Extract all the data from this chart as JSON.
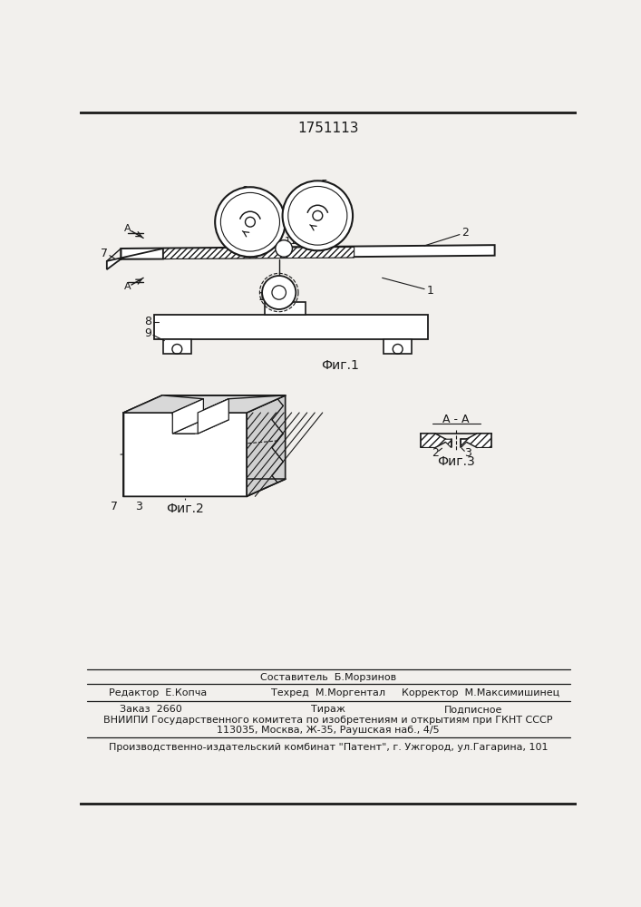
{
  "title": "1751113",
  "bg_color": "#f2f0ed",
  "line_color": "#1a1a1a",
  "fig1_label": "Фиг.1",
  "fig2_label": "Фиг.2",
  "fig3_label": "Фиг.3",
  "fig3_title": "A - A",
  "footer_editor": "Редактор  Е.Копча",
  "footer_tech": "Техред  М.Моргентал",
  "footer_corr": "Корректор  М.Максимишинец",
  "footer_author": "Составитель  Б.Морзинов",
  "footer_order": "Заказ  2660",
  "footer_tirazh": "Тираж",
  "footer_podp": "Подписное",
  "footer_vniipи": "ВНИИПИ Государственного комитета по изобретениям и открытиям при ГКНТ СССР",
  "footer_addr": "113035, Москва, Ж-35, Раушская наб., 4/5",
  "footer_last": "Производственно-издательский комбинат \"Патент\", г. Ужгород, ул.Гагарина, 101"
}
